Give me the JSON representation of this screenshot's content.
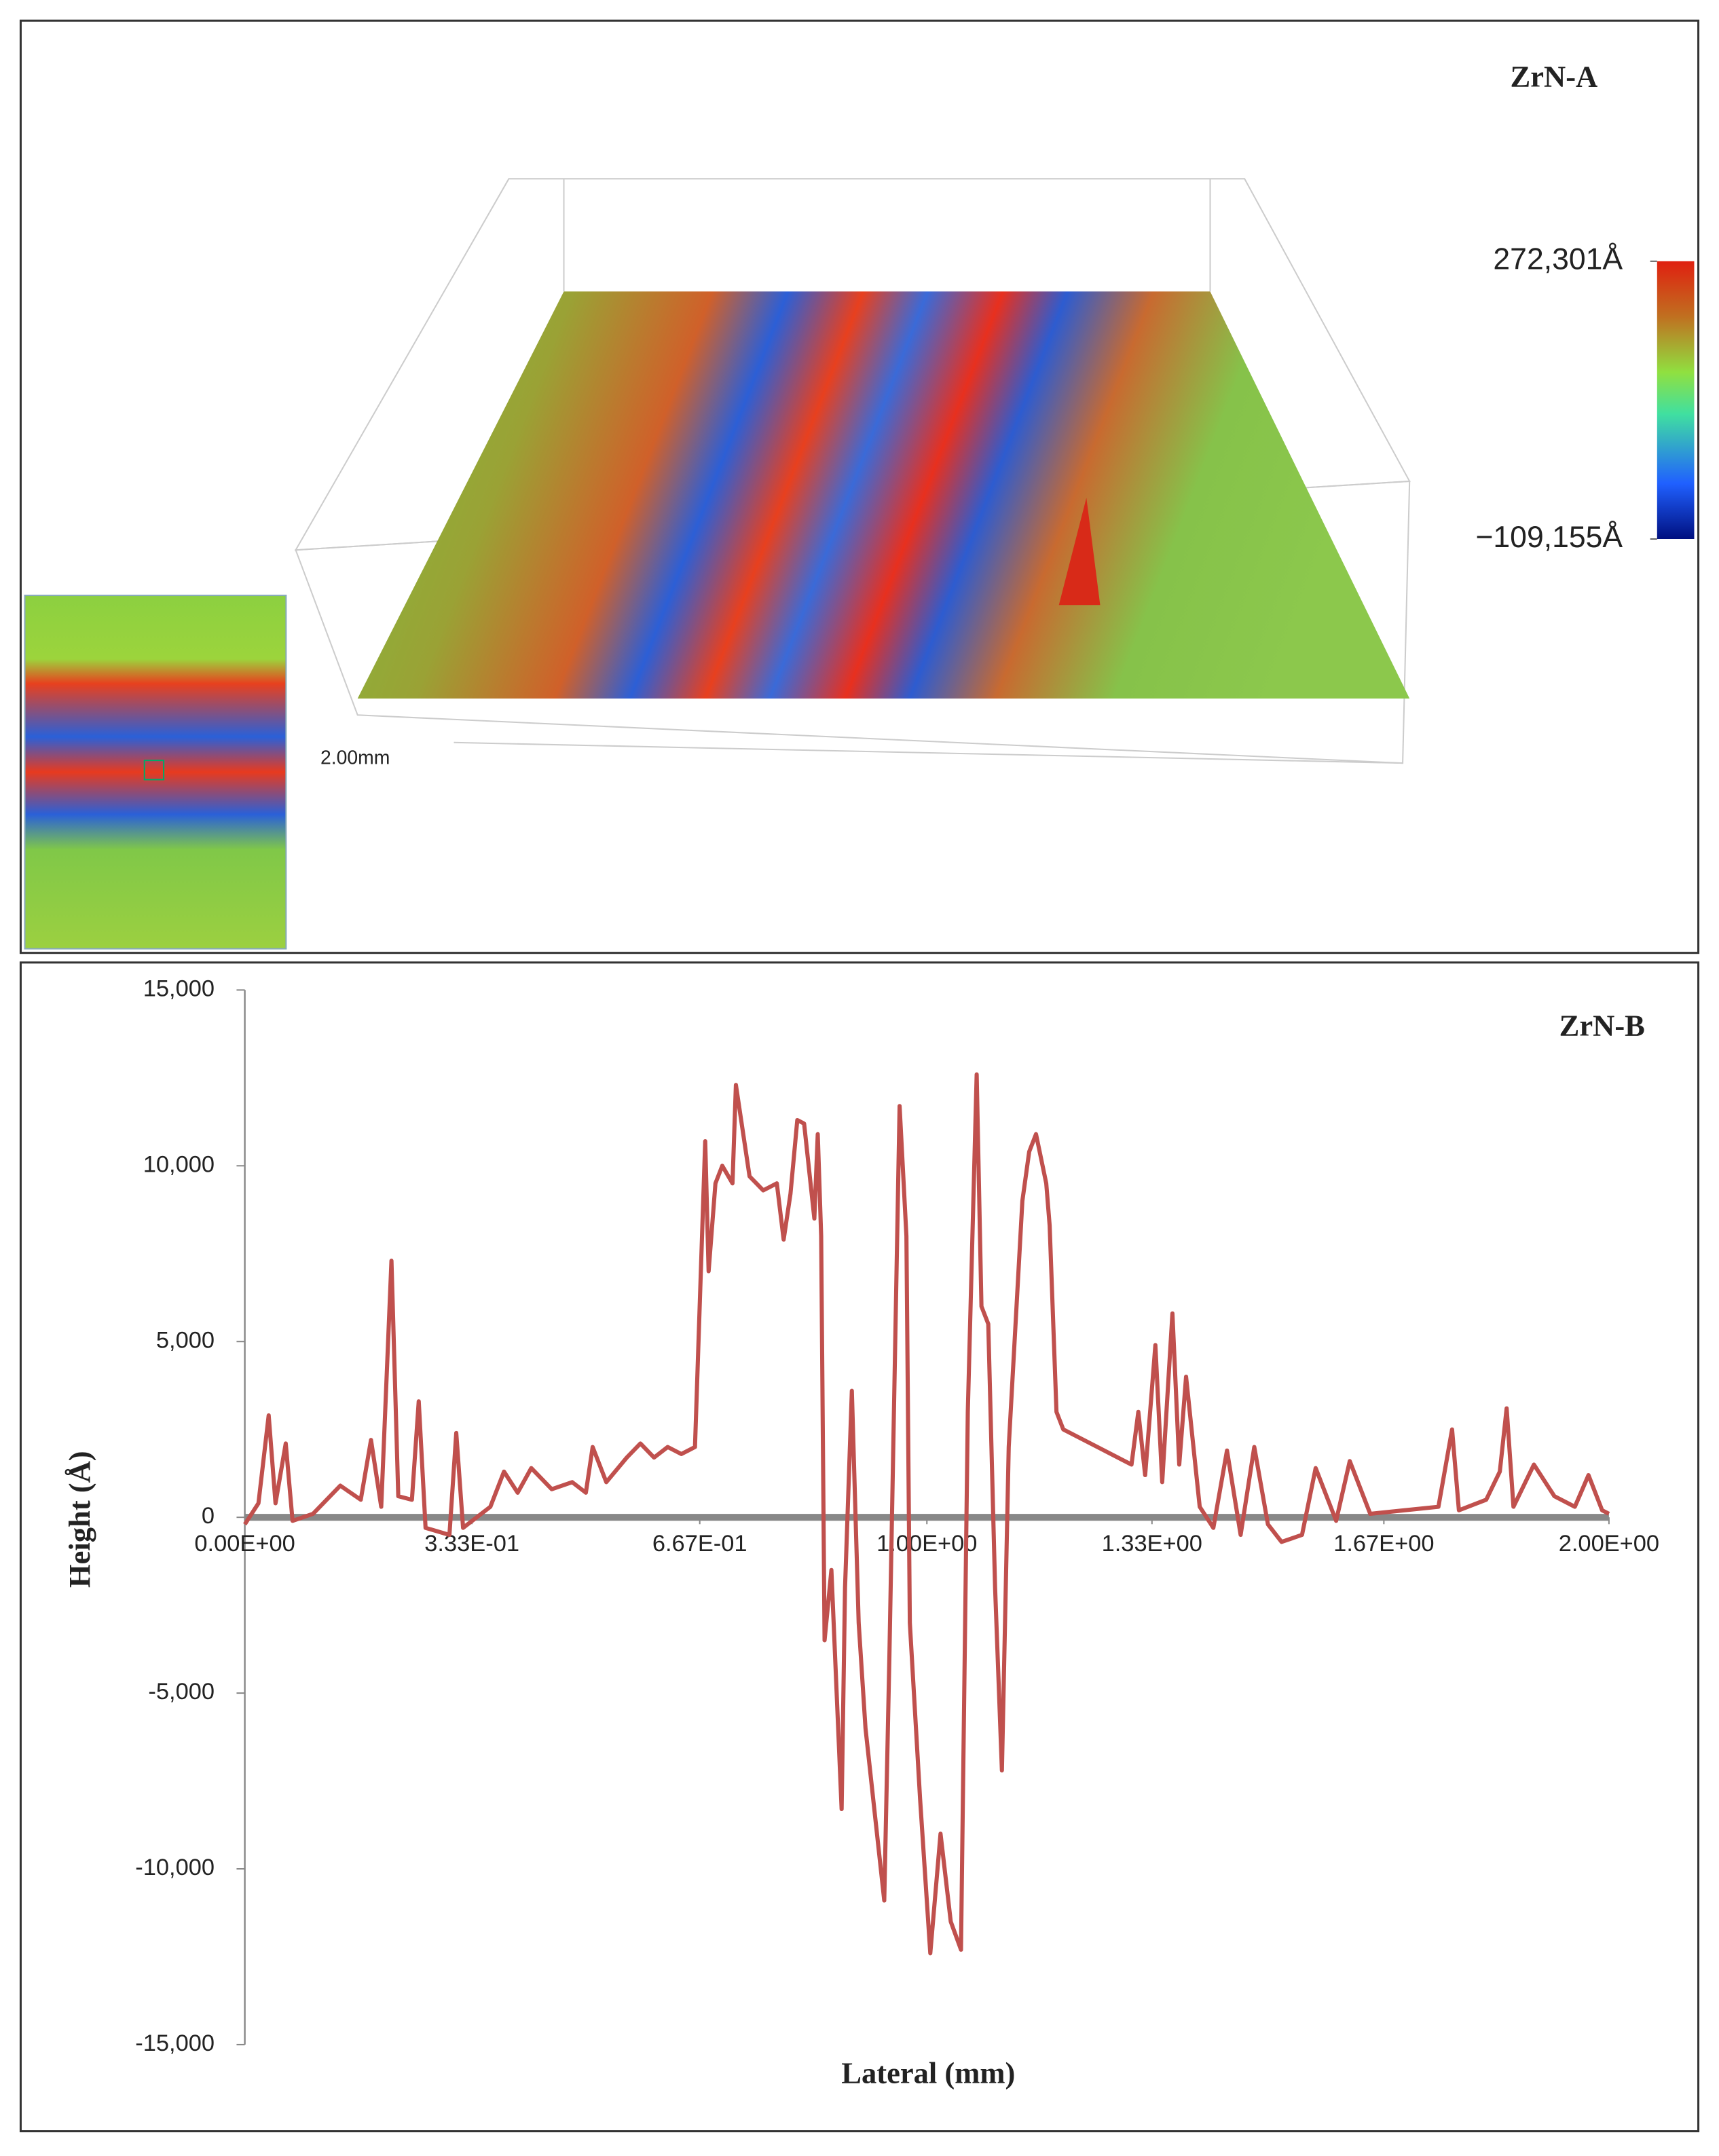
{
  "chart_data": [
    {
      "type": "surface",
      "title": "ZrN-A",
      "annotation": "2.00mm",
      "clim": [
        -109155,
        272301
      ],
      "cticks": [
        {
          "value": 272301,
          "label": "272,301Å"
        },
        {
          "value": -109155,
          "label": "−109,155Å"
        }
      ]
    },
    {
      "type": "line",
      "title": "ZrN-B",
      "xlabel": "Lateral (mm)",
      "ylabel": "Height (Å)",
      "x": [
        0,
        0.02,
        0.035,
        0.045,
        0.06,
        0.07,
        0.1,
        0.14,
        0.17,
        0.185,
        0.2,
        0.215,
        0.225,
        0.245,
        0.255,
        0.265,
        0.3,
        0.31,
        0.32,
        0.36,
        0.38,
        0.4,
        0.42,
        0.45,
        0.48,
        0.5,
        0.51,
        0.53,
        0.56,
        0.58,
        0.6,
        0.62,
        0.64,
        0.66,
        0.675,
        0.68,
        0.69,
        0.7,
        0.715,
        0.72,
        0.74,
        0.76,
        0.78,
        0.79,
        0.8,
        0.81,
        0.82,
        0.835,
        0.84,
        0.845,
        0.85,
        0.86,
        0.875,
        0.88,
        0.89,
        0.9,
        0.91,
        0.9375,
        0.945,
        0.96,
        0.97,
        0.975,
        0.99,
        1.005,
        1.02,
        1.035,
        1.05,
        1.06,
        1.073,
        1.08,
        1.09,
        1.1,
        1.11,
        1.12,
        1.14,
        1.15,
        1.16,
        1.175,
        1.18,
        1.19,
        1.2,
        1.25,
        1.3,
        1.31,
        1.32,
        1.335,
        1.345,
        1.36,
        1.37,
        1.38,
        1.4,
        1.42,
        1.44,
        1.46,
        1.48,
        1.5,
        1.52,
        1.55,
        1.57,
        1.6,
        1.62,
        1.65,
        1.7,
        1.75,
        1.77,
        1.78,
        1.82,
        1.84,
        1.85,
        1.86,
        1.89,
        1.92,
        1.95,
        1.97,
        1.99,
        2.0
      ],
      "series": [
        {
          "color": "#c0504d",
          "values": [
            -200,
            400,
            2900,
            400,
            2100,
            -100,
            100,
            900,
            500,
            2200,
            300,
            7300,
            600,
            500,
            3300,
            -300,
            -500,
            2400,
            -300,
            300,
            1300,
            700,
            1400,
            800,
            1000,
            700,
            2000,
            1000,
            1700,
            2100,
            1700,
            2000,
            1800,
            2000,
            10700,
            7000,
            9500,
            10000,
            9500,
            12300,
            9700,
            9300,
            9500,
            7900,
            9200,
            11300,
            11200,
            8500,
            10900,
            8000,
            -3500,
            -1500,
            -8300,
            -2000,
            3600,
            -3000,
            -6000,
            -10900,
            -4000,
            11700,
            8000,
            -3000,
            -8000,
            -12400,
            -9000,
            -11500,
            -12300,
            3000,
            12600,
            6000,
            5500,
            -2000,
            -7200,
            2000,
            9000,
            10400,
            10900,
            9500,
            8300,
            3000,
            2500,
            2000,
            1500,
            3000,
            1200,
            4900,
            1000,
            5800,
            1500,
            4000,
            300,
            -300,
            1900,
            -500,
            2000,
            -200,
            -700,
            -500,
            1400,
            -100,
            1600,
            100,
            200,
            300,
            2500,
            200,
            500,
            1300,
            3100,
            300,
            1500,
            600,
            300,
            1200,
            200,
            100
          ]
        }
      ],
      "xlim": [
        0,
        2
      ],
      "xticks": [
        {
          "value": 0,
          "label": "0.00E+00"
        },
        {
          "value": 0.333,
          "label": "3.33E-01"
        },
        {
          "value": 0.667,
          "label": "6.67E-01"
        },
        {
          "value": 1,
          "label": "1.00E+00"
        },
        {
          "value": 1.33,
          "label": "1.33E+00"
        },
        {
          "value": 1.67,
          "label": "1.67E+00"
        },
        {
          "value": 2,
          "label": "2.00E+00"
        }
      ],
      "ylim": [
        -15000,
        15000
      ],
      "yticks": [
        {
          "value": 15000,
          "label": "15,000"
        },
        {
          "value": 10000,
          "label": "10,000"
        },
        {
          "value": 5000,
          "label": "5,000"
        },
        0,
        {
          "value": -5000,
          "label": "-5,000"
        },
        {
          "value": -10000,
          "label": "-10,000"
        },
        {
          "value": -15000,
          "label": "-15,000"
        }
      ]
    }
  ]
}
